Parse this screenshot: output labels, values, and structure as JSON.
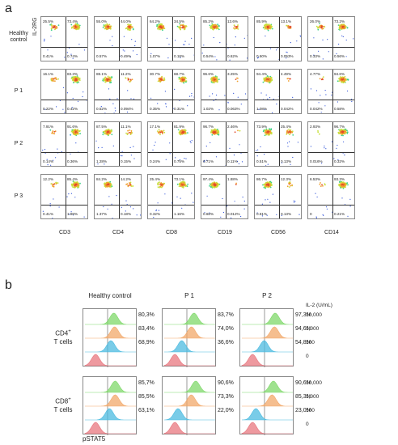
{
  "panel_a": {
    "label": "a",
    "y_axis_label": "IL-2RG",
    "columns": [
      "CD3",
      "CD4",
      "CD8",
      "CD19",
      "CD56",
      "CD14"
    ],
    "rows": [
      {
        "label": "Healthy control",
        "cells": [
          [
            "25.5%",
            "73.4%",
            "0.41%",
            "0.74%"
          ],
          [
            "55.0%",
            "44.0%",
            "0.57%",
            "0.49%"
          ],
          [
            "64.2%",
            "34.5%",
            "1.07%",
            "0.18%"
          ],
          [
            "85.2%",
            "13.6%",
            "0.54%",
            "0.62%"
          ],
          [
            "85.9%",
            "13.1%",
            "0.60%",
            "0.053%"
          ],
          [
            "26.0%",
            "73.2%",
            "0.33%",
            "0.56%"
          ]
        ]
      },
      {
        "label": "P 1",
        "cells": [
          [
            "16.1%",
            "83.3%",
            "0.22%",
            "0.42%"
          ],
          [
            "88.1%",
            "11.2%",
            "0.52%",
            "0.094%"
          ],
          [
            "30.7%",
            "68.7%",
            "0.35%",
            "0.31%"
          ],
          [
            "96.6%",
            "3.25%",
            "1.02%",
            "0.063%"
          ],
          [
            "94.4%",
            "4.49%",
            "1.08%",
            "0.042%"
          ],
          [
            "4.77%",
            "94.6%",
            "0.042%",
            "0.58%"
          ]
        ]
      },
      {
        "label": "P 2",
        "cells": [
          [
            "7.91%",
            "91.6%",
            "0.14%",
            "0.36%"
          ],
          [
            "87.5%",
            "11.1%",
            "1.28%",
            "0.15%"
          ],
          [
            "17.1%",
            "81.9%",
            "0.24%",
            "0.75%"
          ],
          [
            "96.7%",
            "2.46%",
            "0.71%",
            "0.11%"
          ],
          [
            "73.9%",
            "25.4%",
            "0.51%",
            "0.13%"
          ],
          [
            "2.93%",
            "96.7%",
            "0.016%",
            "0.32%"
          ]
        ]
      },
      {
        "label": "P 3",
        "cells": [
          [
            "12.2%",
            "85.4%",
            "0.41%",
            "1.98%"
          ],
          [
            "84.2%",
            "14.2%",
            "1.37%",
            "0.18%"
          ],
          [
            "25.4%",
            "73.1%",
            "0.32%",
            "1.16%"
          ],
          [
            "97.4%",
            "1.88%",
            "0.68%",
            "0.012%"
          ],
          [
            "86.7%",
            "12.3%",
            "0.81%",
            "0.13%"
          ],
          [
            "6.53%",
            "93.3%",
            "0",
            "0.21%"
          ]
        ]
      }
    ]
  },
  "panel_b": {
    "label": "b",
    "columns": [
      "Healthy control",
      "P 1",
      "P 2"
    ],
    "il2_header": "IL-2 (U/mL)",
    "doses": [
      "10,000",
      "1,000",
      "100",
      "0"
    ],
    "groups": [
      {
        "label_main": "CD4",
        "label_sup": "+",
        "label_sub": "T cells",
        "values": [
          [
            "80,3%",
            "83,4%",
            "68,9%"
          ],
          [
            "83,7%",
            "74,0%",
            "36,6%"
          ],
          [
            "97,3%",
            "94,6%",
            "54,8%"
          ]
        ]
      },
      {
        "label_main": "CD8",
        "label_sup": "+",
        "label_sub": "T cells",
        "values": [
          [
            "85,7%",
            "85,5%",
            "63,1%"
          ],
          [
            "90,6%",
            "73,3%",
            "22,0%"
          ],
          [
            "90,6%",
            "85,3%",
            "23,0%"
          ]
        ]
      }
    ],
    "x_axis_label": "pSTAT5",
    "colors": {
      "10000": "#7fd86a",
      "1000": "#f2a869",
      "100": "#4cbbe0",
      "0": "#e8777f"
    }
  }
}
